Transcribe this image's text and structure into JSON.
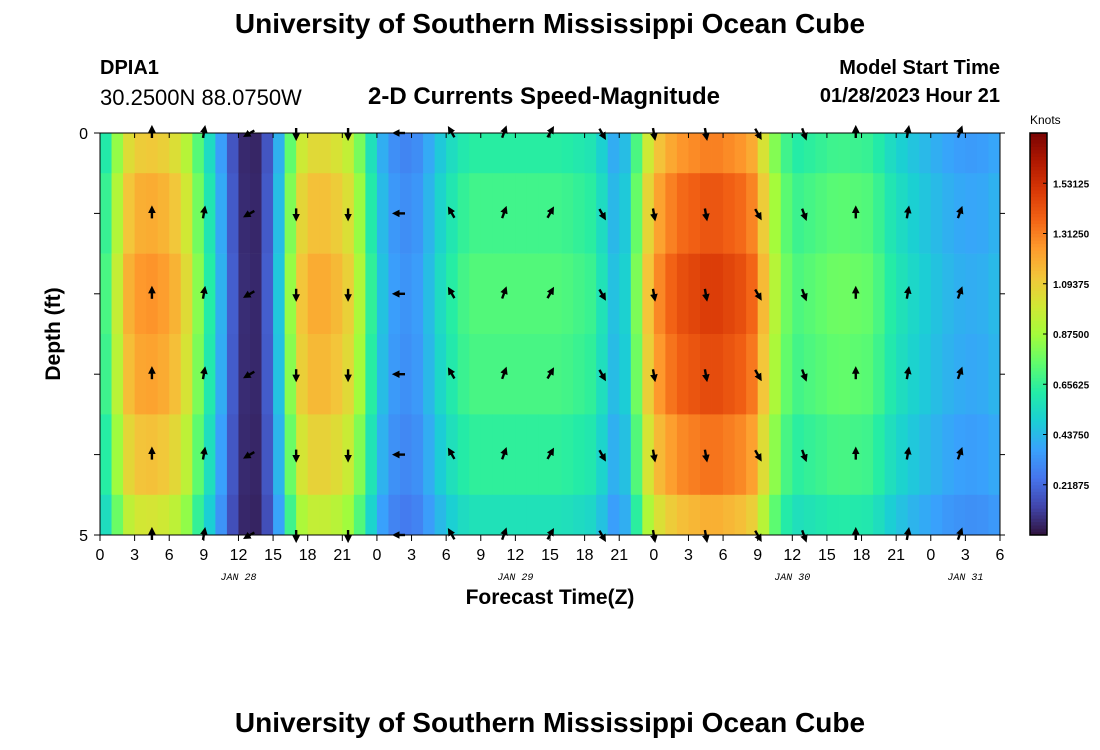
{
  "header": {
    "title": "University of Southern Mississippi Ocean Cube",
    "station": "DPIA1",
    "coords": "30.2500N  88.0750W",
    "subtitle": "2-D Currents Speed-Magnitude",
    "model_start_label": "Model Start Time",
    "model_start_value": "01/28/2023 Hour 21"
  },
  "footer": {
    "title": "University of Southern Mississippi Ocean Cube"
  },
  "colorbar": {
    "units": "Knots",
    "ticks": [
      "1.53125",
      "1.31250",
      "1.09375",
      "0.87500",
      "0.65625",
      "0.43750",
      "0.21875"
    ],
    "min": 0,
    "max": 1.75,
    "colors": [
      "#30123b",
      "#4145ab",
      "#4675ed",
      "#39a2fc",
      "#1bcfd4",
      "#24eca6",
      "#61fc6c",
      "#a4fc3b",
      "#d1e834",
      "#f3c63a",
      "#fe9b2d",
      "#f36315",
      "#d93806",
      "#b11901",
      "#7a0403"
    ]
  },
  "chart_data": {
    "type": "heatmap",
    "title": "2-D Currents Speed-Magnitude",
    "xlabel": "Forecast Time(Z)",
    "ylabel": "Depth (ft)",
    "x_range": [
      0,
      78
    ],
    "y_range": [
      0,
      5
    ],
    "x_tick_labels": [
      "0",
      "3",
      "6",
      "9",
      "12",
      "15",
      "18",
      "21",
      "0",
      "3",
      "6",
      "9",
      "12",
      "15",
      "18",
      "21",
      "0",
      "3",
      "6",
      "9",
      "12",
      "15",
      "18",
      "21",
      "0",
      "3",
      "6"
    ],
    "y_tick_labels": [
      "0",
      "5"
    ],
    "date_labels": [
      {
        "text": "JAN 28",
        "hour": 12
      },
      {
        "text": "JAN 29",
        "hour": 36
      },
      {
        "text": "JAN 30",
        "hour": 60
      },
      {
        "text": "JAN 31",
        "hour": 75
      }
    ],
    "row_scale": [
      0.88,
      0.95,
      1.0,
      0.97,
      0.9,
      0.8
    ],
    "speed_profile": [
      [
        0,
        0.6
      ],
      [
        1,
        0.8
      ],
      [
        2,
        1.12
      ],
      [
        3,
        1.25
      ],
      [
        5,
        1.27
      ],
      [
        7,
        1.15
      ],
      [
        8,
        0.95
      ],
      [
        9,
        0.7
      ],
      [
        10,
        0.55
      ],
      [
        11,
        0.28
      ],
      [
        12,
        0.1
      ],
      [
        13,
        0.03
      ],
      [
        14,
        0.08
      ],
      [
        15,
        0.3
      ],
      [
        16,
        0.65
      ],
      [
        17,
        1.05
      ],
      [
        18,
        1.2
      ],
      [
        20,
        1.2
      ],
      [
        22,
        1.05
      ],
      [
        23,
        0.75
      ],
      [
        24,
        0.55
      ],
      [
        25,
        0.38
      ],
      [
        27,
        0.32
      ],
      [
        28,
        0.4
      ],
      [
        29,
        0.5
      ],
      [
        30,
        0.6
      ],
      [
        32,
        0.72
      ],
      [
        40,
        0.72
      ],
      [
        43,
        0.66
      ],
      [
        44,
        0.5
      ],
      [
        45,
        0.42
      ],
      [
        46,
        0.6
      ],
      [
        47,
        1.0
      ],
      [
        48,
        1.25
      ],
      [
        50,
        1.42
      ],
      [
        53,
        1.5
      ],
      [
        56,
        1.42
      ],
      [
        57,
        1.32
      ],
      [
        58,
        1.0
      ],
      [
        59,
        0.85
      ],
      [
        60,
        0.7
      ],
      [
        64,
        0.78
      ],
      [
        67,
        0.75
      ],
      [
        68,
        0.65
      ],
      [
        70,
        0.55
      ],
      [
        72,
        0.48
      ],
      [
        74,
        0.42
      ],
      [
        76,
        0.4
      ],
      [
        78,
        0.45
      ]
    ],
    "arrow_hours": [
      4.5,
      9,
      13,
      17,
      21.5,
      26,
      30.5,
      35,
      39,
      43.5,
      48,
      52.5,
      57,
      61,
      65.5,
      70,
      74.5
    ],
    "arrow_depths": [
      0,
      1,
      2,
      3,
      4,
      5
    ],
    "arrow_dirs_deg": [
      0,
      10,
      240,
      180,
      180,
      270,
      330,
      20,
      30,
      150,
      170,
      170,
      150,
      160,
      0,
      10,
      20
    ]
  }
}
